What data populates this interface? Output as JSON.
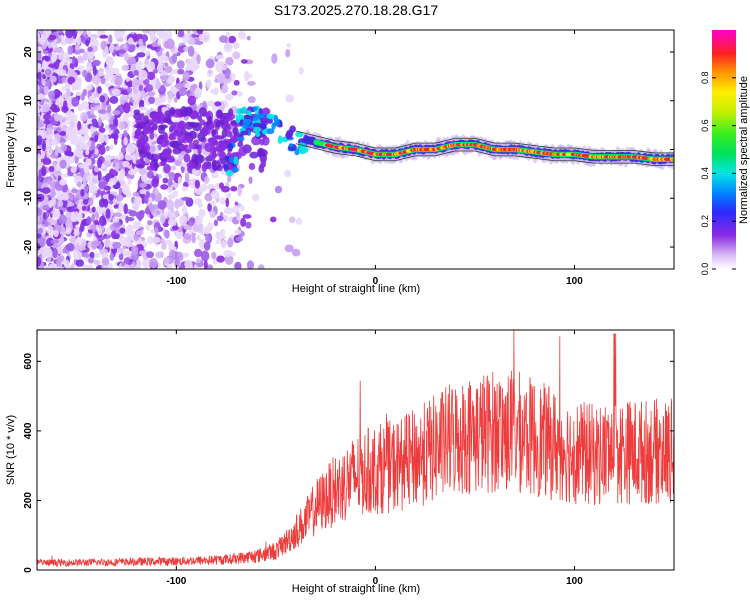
{
  "title": "S173.2025.270.18.28.G17",
  "chart_data": [
    {
      "type": "heatmap",
      "xlabel": "Height of straight line (km)",
      "ylabel": "Frequency (Hz)",
      "xlim": [
        -170,
        150
      ],
      "ylim": [
        -24.5,
        24.5
      ],
      "xticks": [
        -100,
        0,
        100
      ],
      "yticks": [
        -20,
        -10,
        0,
        10,
        20
      ],
      "colorbar": {
        "label": "Normalized spectral amplitude",
        "range": [
          0,
          1
        ],
        "ticks": [
          0.0,
          0.2,
          0.4,
          0.6,
          0.8
        ]
      },
      "description_points": {
        "ridge_x": [
          -70,
          -55,
          -45,
          -35,
          -20,
          -10,
          0,
          10,
          20,
          30,
          40,
          50,
          60,
          70,
          80,
          90,
          100,
          110,
          120,
          130,
          140,
          150
        ],
        "ridge_freq": [
          5,
          6,
          3,
          2,
          0.5,
          0,
          -1,
          -1,
          0,
          0,
          1,
          1,
          0,
          0,
          -0.5,
          -1,
          -1,
          -1.5,
          -1.5,
          -1.5,
          -2,
          -2
        ]
      }
    },
    {
      "type": "line",
      "xlabel": "Height of straight line (km)",
      "ylabel": "SNR (10 * v/v)",
      "xlim": [
        -170,
        150
      ],
      "ylim": [
        0,
        690
      ],
      "xticks": [
        -100,
        0,
        100
      ],
      "yticks": [
        0,
        200,
        400,
        600
      ],
      "series_color": "#ee3b3b",
      "trend_x": [
        -170,
        -140,
        -100,
        -75,
        -60,
        -50,
        -45,
        -40,
        -35,
        -30,
        -20,
        -10,
        0,
        10,
        20,
        30,
        40,
        50,
        60,
        70,
        80,
        90,
        100,
        110,
        120,
        130,
        140,
        150
      ],
      "trend_y": [
        20,
        22,
        25,
        30,
        40,
        55,
        80,
        110,
        140,
        180,
        230,
        270,
        290,
        300,
        320,
        350,
        380,
        390,
        400,
        400,
        380,
        360,
        340,
        330,
        340,
        340,
        340,
        340
      ]
    }
  ],
  "colors": {
    "axis": "#000000",
    "line": "#ee3b3b",
    "ridge_core": "#ee2244",
    "ridge_outer": "#00ee66"
  }
}
